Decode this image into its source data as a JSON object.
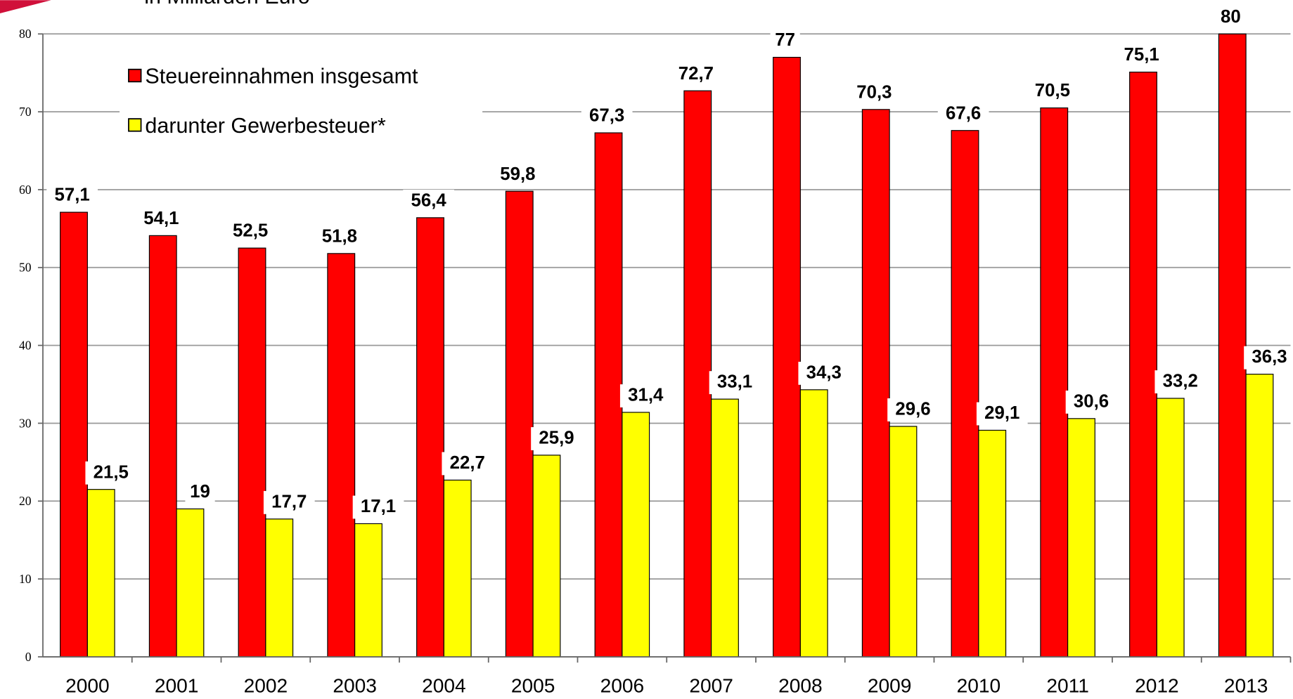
{
  "chart_data": {
    "type": "bar",
    "subtitle": "in Milliarden Euro",
    "categories": [
      "2000",
      "2001",
      "2002",
      "2003",
      "2004",
      "2005",
      "2006",
      "2007",
      "2008",
      "2009",
      "2010",
      "2011",
      "2012",
      "2013"
    ],
    "series": [
      {
        "name": "Steuereinnahmen insgesamt",
        "color": "#ff0000",
        "values": [
          57.1,
          54.1,
          52.5,
          51.8,
          56.4,
          59.8,
          67.3,
          72.7,
          77,
          70.3,
          67.6,
          70.5,
          75.1,
          80
        ],
        "value_labels": [
          "57,1",
          "54,1",
          "52,5",
          "51,8",
          "56,4",
          "59,8",
          "67,3",
          "72,7",
          "77",
          "70,3",
          "67,6",
          "70,5",
          "75,1",
          "80"
        ]
      },
      {
        "name": "darunter Gewerbesteuer*",
        "color": "#ffff00",
        "values": [
          21.5,
          19,
          17.7,
          17.1,
          22.7,
          25.9,
          31.4,
          33.1,
          34.3,
          29.6,
          29.1,
          30.6,
          33.2,
          36.3
        ],
        "value_labels": [
          "21,5",
          "19",
          "17,7",
          "17,1",
          "22,7",
          "25,9",
          "31,4",
          "33,1",
          "34,3",
          "29,6",
          "29,1",
          "30,6",
          "33,2",
          "36,3"
        ]
      }
    ],
    "ylim": [
      0,
      80
    ],
    "yticks": [
      0,
      10,
      20,
      30,
      40,
      50,
      60,
      70,
      80
    ],
    "grid": true,
    "legend": "top-left"
  }
}
